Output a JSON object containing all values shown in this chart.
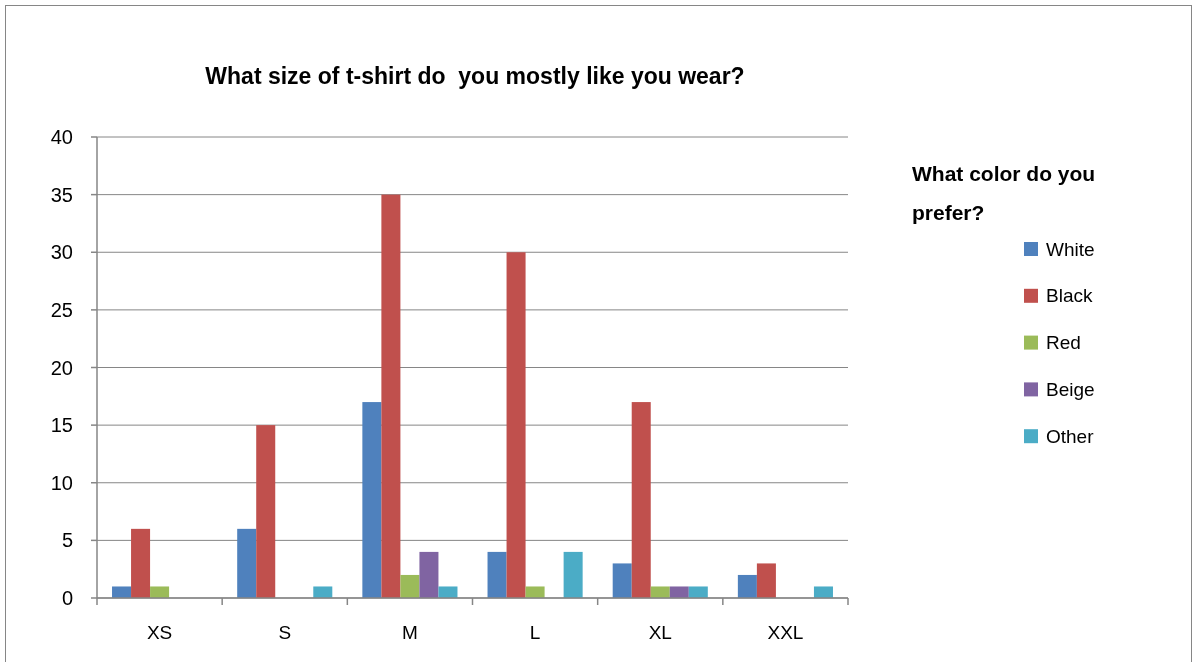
{
  "chart_data": {
    "type": "bar",
    "title": "What size of t-shirt do  you mostly like you wear?",
    "categories": [
      "XS",
      "S",
      "M",
      "L",
      "XL",
      "XXL"
    ],
    "series": [
      {
        "name": "White",
        "color": "#4f81bd",
        "values": [
          1,
          6,
          17,
          4,
          3,
          2
        ]
      },
      {
        "name": "Black",
        "color": "#c0504d",
        "values": [
          6,
          15,
          35,
          30,
          17,
          3
        ]
      },
      {
        "name": "Red",
        "color": "#9bbb59",
        "values": [
          1,
          null,
          2,
          1,
          1,
          null
        ]
      },
      {
        "name": "Beige",
        "color": "#8064a2",
        "values": [
          null,
          null,
          4,
          null,
          1,
          null
        ]
      },
      {
        "name": "Other",
        "color": "#4bacc6",
        "values": [
          null,
          1,
          1,
          4,
          1,
          1
        ]
      }
    ],
    "legend_title": "What color do you prefer?",
    "ylim": [
      0,
      40
    ],
    "yticks": [
      0,
      5,
      10,
      15,
      20,
      25,
      30,
      35,
      40
    ],
    "grid": "y",
    "legend": "right"
  }
}
